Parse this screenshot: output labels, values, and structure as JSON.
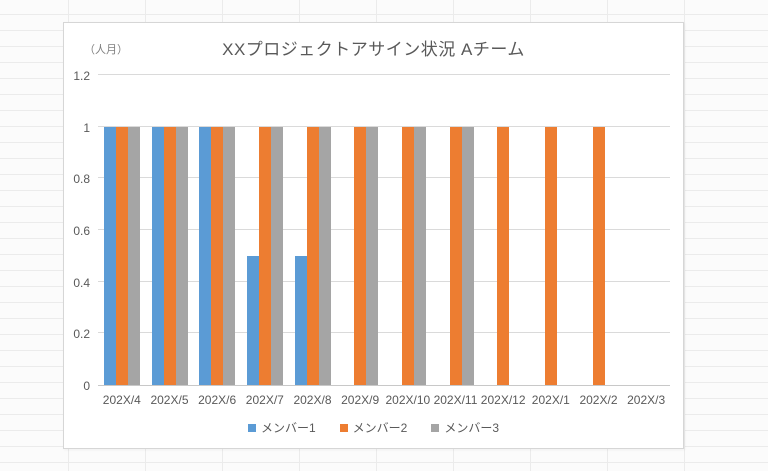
{
  "sheet": {
    "background_color": "#fbfbfb",
    "gridline_color": "#ebebeb"
  },
  "chart_data": {
    "type": "bar",
    "title": "XXプロジェクトアサイン状況 Aチーム",
    "unit_label": "（人月）",
    "categories": [
      "202X/4",
      "202X/5",
      "202X/6",
      "202X/7",
      "202X/8",
      "202X/9",
      "202X/10",
      "202X/11",
      "202X/12",
      "202X/1",
      "202X/2",
      "202X/3"
    ],
    "series": [
      {
        "name": "メンバー1",
        "color": "#5B9BD5",
        "values": [
          1,
          1,
          1,
          0.5,
          0.5,
          null,
          null,
          null,
          null,
          null,
          null,
          null
        ]
      },
      {
        "name": "メンバー2",
        "color": "#ED7D31",
        "values": [
          1,
          1,
          1,
          1,
          1,
          1,
          1,
          1,
          1,
          1,
          1,
          null
        ]
      },
      {
        "name": "メンバー3",
        "color": "#A5A5A5",
        "values": [
          1,
          1,
          1,
          1,
          1,
          1,
          1,
          1,
          null,
          null,
          null,
          null
        ]
      }
    ],
    "ylim": [
      0,
      1.2
    ],
    "yticks": [
      0,
      0.2,
      0.4,
      0.6,
      0.8,
      1,
      1.2
    ],
    "ytick_labels": [
      "0",
      "0.2",
      "0.4",
      "0.6",
      "0.8",
      "1",
      "1.2"
    ],
    "xlabel": "",
    "ylabel": "（人月）",
    "grid": true,
    "legend_position": "bottom",
    "colors": {
      "grid": "#dadada",
      "axis": "#c8c8c8",
      "text": "#595959"
    }
  }
}
